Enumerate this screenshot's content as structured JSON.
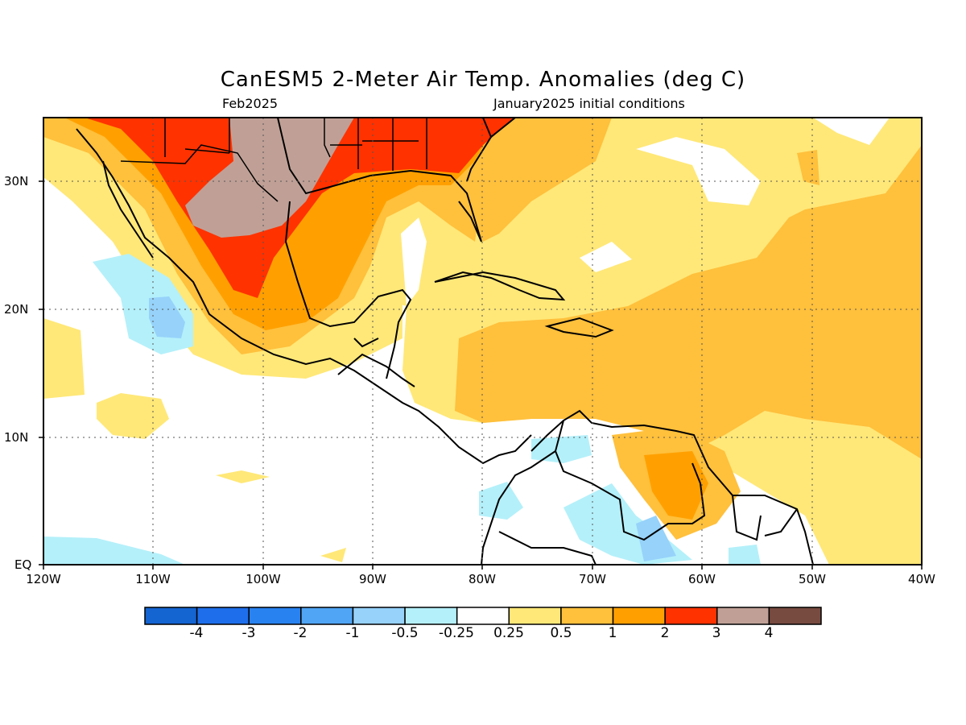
{
  "title": "CanESM5 2-Meter Air Temp. Anomalies (deg C)",
  "subtitle_left": "Feb2025",
  "subtitle_right": "January2025 initial conditions",
  "lat_labels": [
    "EQ",
    "10N",
    "20N",
    "30N"
  ],
  "lon_labels": [
    "120W",
    "110W",
    "100W",
    "90W",
    "80W",
    "70W",
    "60W",
    "50W",
    "40W"
  ],
  "colorbar": {
    "colors": [
      "#1464d2",
      "#1e6eeb",
      "#2882f0",
      "#50a5f5",
      "#96d2fa",
      "#b4f0fa",
      "#ffffff",
      "#ffe878",
      "#ffc03c",
      "#ffa000",
      "#ff3200",
      "#c0a096",
      "#784b40"
    ],
    "labels": [
      "-4",
      "-3",
      "-2",
      "-1",
      "-0.5",
      "-0.25",
      "0.25",
      "0.5",
      "1",
      "2",
      "3",
      "4"
    ]
  }
}
